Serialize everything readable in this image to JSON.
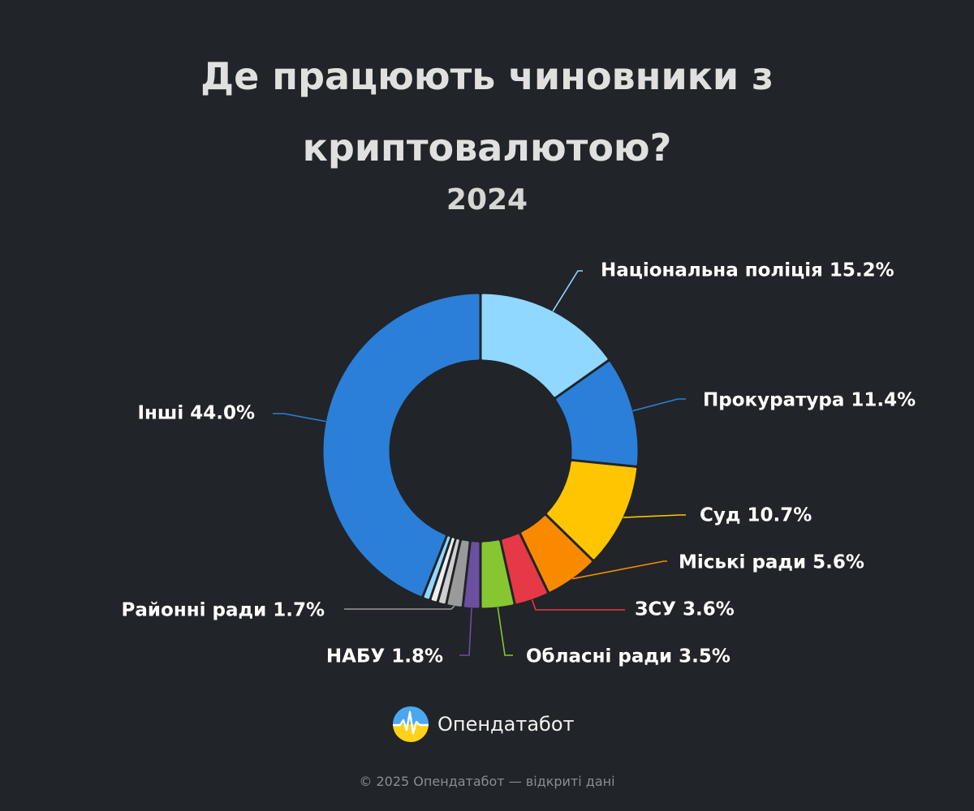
{
  "title": "Де працюють чиновники з криптовалютою?",
  "subtitle": "2024",
  "brand": {
    "name": "Опендатабот",
    "logo_icon": "opendatabot-logo-icon"
  },
  "footer": "© 2025 Опендатабот — відкриті дані",
  "chart_data": {
    "type": "donut",
    "title": "Де працюють чиновники з криптовалютою?",
    "subtitle": "2024",
    "unit": "%",
    "slices": [
      {
        "label": "Національна поліція",
        "value": 15.2,
        "color": "#90d8ff",
        "shown": true
      },
      {
        "label": "Прокуратура",
        "value": 11.4,
        "color": "#2b7fd8",
        "shown": true
      },
      {
        "label": "Суд",
        "value": 10.7,
        "color": "#fec500",
        "shown": true
      },
      {
        "label": "Міські ради",
        "value": 5.6,
        "color": "#f98a00",
        "shown": true
      },
      {
        "label": "ЗСУ",
        "value": 3.6,
        "color": "#e63946",
        "shown": true
      },
      {
        "label": "Обласні ради",
        "value": 3.5,
        "color": "#86c631",
        "shown": true
      },
      {
        "label": "НАБУ",
        "value": 1.8,
        "color": "#6b4fa0",
        "shown": true
      },
      {
        "label": "Районні ради",
        "value": 1.7,
        "color": "#9a9a9a",
        "shown": true
      },
      {
        "label": "",
        "value": 0.9,
        "color": "#cfcfcf",
        "shown": false
      },
      {
        "label": "",
        "value": 0.8,
        "color": "#eeeeee",
        "shown": false
      },
      {
        "label": "",
        "value": 0.8,
        "color": "#90d8ff",
        "shown": false
      },
      {
        "label": "Інші",
        "value": 44.0,
        "color": "#2b7fd8",
        "shown": true
      }
    ]
  }
}
